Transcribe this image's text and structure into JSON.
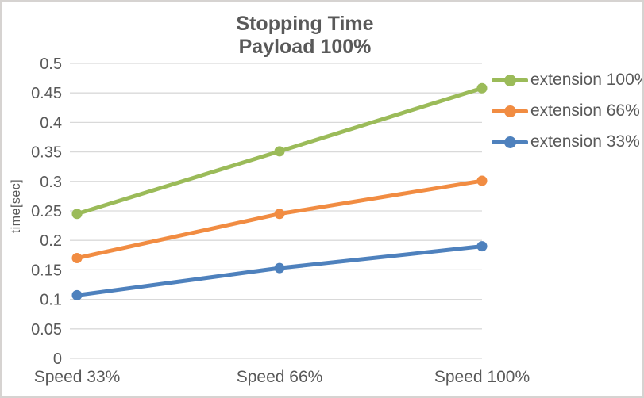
{
  "chart_data": {
    "type": "line",
    "title": "Stopping Time",
    "subtitle": "Payload 100%",
    "categories": [
      "Speed 33%",
      "Speed 66%",
      "Speed 100%"
    ],
    "series": [
      {
        "name": "extension 100%",
        "values": [
          0.245,
          0.351,
          0.458
        ],
        "color": "#9BBB59"
      },
      {
        "name": "extension 66%",
        "values": [
          0.17,
          0.245,
          0.301
        ],
        "color": "#F18C42"
      },
      {
        "name": "extension 33%",
        "values": [
          0.107,
          0.153,
          0.19
        ],
        "color": "#4E81BD"
      }
    ],
    "xlabel": "",
    "ylabel": "time[sec]",
    "ylim": [
      0,
      0.5
    ],
    "ytick_step": 0.05,
    "yticks": [
      "0",
      "0.05",
      "0.1",
      "0.15",
      "0.2",
      "0.25",
      "0.3",
      "0.35",
      "0.4",
      "0.45",
      "0.5"
    ],
    "grid": "horizontal",
    "legend_position": "right",
    "marker": "circle",
    "text_color": "#595959",
    "gridline_color": "#D9D9D9",
    "border_color": "#D6D3D1"
  }
}
